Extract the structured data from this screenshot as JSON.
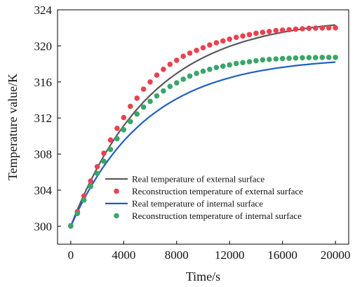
{
  "chart_data": {
    "type": "line",
    "title": "",
    "xlabel": "Time/s",
    "ylabel": "Temperature value/K",
    "xlim": [
      -1000,
      21000
    ],
    "ylim": [
      298,
      324
    ],
    "xticks": [
      0,
      4000,
      8000,
      12000,
      16000,
      20000
    ],
    "yticks": [
      300,
      304,
      308,
      312,
      316,
      320,
      324
    ],
    "grid": false,
    "legend_position": "bottom-right",
    "series": [
      {
        "name": "Real temperature of external surface",
        "style": "line",
        "color": "#5a5a5a",
        "x": [
          0,
          500,
          1000,
          1500,
          2000,
          2500,
          3000,
          3500,
          4000,
          4500,
          5000,
          5500,
          6000,
          6500,
          7000,
          7500,
          8000,
          8500,
          9000,
          9500,
          10000,
          10500,
          11000,
          11500,
          12000,
          12500,
          13000,
          13500,
          14000,
          14500,
          15000,
          15500,
          16000,
          16500,
          17000,
          17500,
          18000,
          18500,
          19000,
          19500,
          20000
        ],
        "values": [
          300,
          301.82,
          303.5,
          305.04,
          306.47,
          307.79,
          309.0,
          310.12,
          311.15,
          312.1,
          312.97,
          313.78,
          314.52,
          315.2,
          315.83,
          316.41,
          316.95,
          317.44,
          317.89,
          318.31,
          318.69,
          319.05,
          319.37,
          319.67,
          319.95,
          320.2,
          320.44,
          320.65,
          320.85,
          321.04,
          321.21,
          321.36,
          321.51,
          321.64,
          321.76,
          321.88,
          321.98,
          322.08,
          322.17,
          322.25,
          322.32
        ]
      },
      {
        "name": "Reconstruction temperature of external surface",
        "style": "scatter",
        "color": "#e8424f",
        "x": [
          0,
          500,
          1000,
          1500,
          2000,
          2500,
          3000,
          3500,
          4000,
          4500,
          5000,
          5500,
          6000,
          6500,
          7000,
          7500,
          8000,
          8500,
          9000,
          9500,
          10000,
          10500,
          11000,
          11500,
          12000,
          12500,
          13000,
          13500,
          14000,
          14500,
          15000,
          15500,
          16000,
          16500,
          17000,
          17500,
          18000,
          18500,
          19000,
          19500,
          20000
        ],
        "values": [
          300.05,
          301.6,
          303.35,
          305.0,
          306.6,
          308.1,
          309.55,
          310.85,
          312.05,
          313.3,
          314.2,
          315.2,
          316.0,
          316.75,
          317.4,
          317.95,
          318.4,
          318.85,
          319.2,
          319.5,
          319.8,
          320.1,
          320.35,
          320.55,
          320.75,
          320.95,
          321.1,
          321.25,
          321.4,
          321.5,
          321.6,
          321.7,
          321.75,
          321.8,
          321.85,
          321.9,
          321.95,
          321.97,
          321.99,
          322.0,
          322.0
        ]
      },
      {
        "name": "Real temperature of internal surface",
        "style": "line",
        "color": "#1f5fbf",
        "x": [
          0,
          500,
          1000,
          1500,
          2000,
          2500,
          3000,
          3500,
          4000,
          4500,
          5000,
          5500,
          6000,
          6500,
          7000,
          7500,
          8000,
          8500,
          9000,
          9500,
          10000,
          10500,
          11000,
          11500,
          12000,
          12500,
          13000,
          13500,
          14000,
          14500,
          15000,
          15500,
          16000,
          16500,
          17000,
          17500,
          18000,
          18500,
          19000,
          19500,
          20000
        ],
        "values": [
          300,
          301.57,
          303.02,
          304.34,
          305.55,
          306.66,
          307.67,
          308.6,
          309.45,
          310.23,
          310.94,
          311.6,
          312.2,
          312.74,
          313.25,
          313.71,
          314.13,
          314.52,
          314.87,
          315.2,
          315.5,
          315.77,
          316.02,
          316.25,
          316.46,
          316.66,
          316.83,
          317.0,
          317.14,
          317.28,
          317.4,
          317.52,
          317.62,
          317.72,
          317.81,
          317.89,
          317.96,
          318.03,
          318.09,
          318.15,
          318.2
        ]
      },
      {
        "name": "Reconstruction temperature of internal surface",
        "style": "scatter",
        "color": "#3aa66a",
        "x": [
          0,
          500,
          1000,
          1500,
          2000,
          2500,
          3000,
          3500,
          4000,
          4500,
          5000,
          5500,
          6000,
          6500,
          7000,
          7500,
          8000,
          8500,
          9000,
          9500,
          10000,
          10500,
          11000,
          11500,
          12000,
          12500,
          13000,
          13500,
          14000,
          14500,
          15000,
          15500,
          16000,
          16500,
          17000,
          17500,
          18000,
          18500,
          19000,
          19500,
          20000
        ],
        "values": [
          300.0,
          301.4,
          302.9,
          304.4,
          305.85,
          307.2,
          308.5,
          309.7,
          310.7,
          311.6,
          312.45,
          313.2,
          313.85,
          314.45,
          315.0,
          315.5,
          315.9,
          316.3,
          316.65,
          316.95,
          317.2,
          317.4,
          317.6,
          317.75,
          317.9,
          318.05,
          318.15,
          318.25,
          318.35,
          318.45,
          318.5,
          318.55,
          318.6,
          318.62,
          318.65,
          318.68,
          318.7,
          318.7,
          318.72,
          318.72,
          318.72
        ]
      }
    ]
  }
}
